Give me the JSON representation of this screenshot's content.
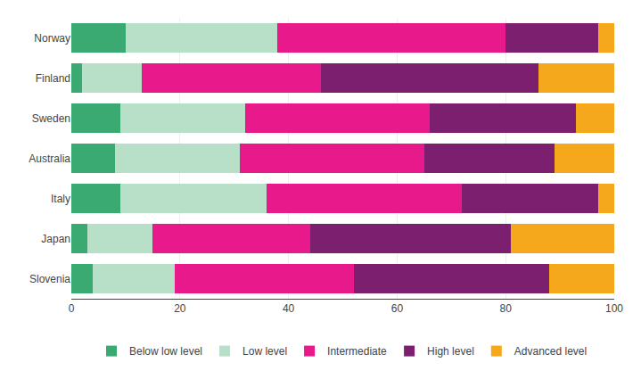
{
  "chart_data": {
    "type": "bar",
    "orientation": "horizontal",
    "stacked": true,
    "categories": [
      "Norway",
      "Finland",
      "Sweden",
      "Australia",
      "Italy",
      "Japan",
      "Slovenia"
    ],
    "series": [
      {
        "name": "Below low level",
        "color": "#3aaa72",
        "values": [
          10,
          2,
          9,
          8,
          9,
          3,
          4
        ]
      },
      {
        "name": "Low level",
        "color": "#b8dfc8",
        "values": [
          28,
          11,
          23,
          23,
          27,
          12,
          15
        ]
      },
      {
        "name": "Intermediate",
        "color": "#e8198b",
        "values": [
          42,
          33,
          34,
          34,
          36,
          29,
          33
        ]
      },
      {
        "name": "High level",
        "color": "#7b1f6e",
        "values": [
          17,
          40,
          27,
          24,
          25,
          37,
          36
        ]
      },
      {
        "name": "Advanced level",
        "color": "#f5a81c",
        "values": [
          3,
          14,
          7,
          11,
          3,
          19,
          12
        ]
      }
    ],
    "xlim": [
      0,
      100
    ],
    "xticks": [
      0,
      20,
      40,
      60,
      80,
      100
    ],
    "grid": true,
    "legend": "bottom"
  }
}
